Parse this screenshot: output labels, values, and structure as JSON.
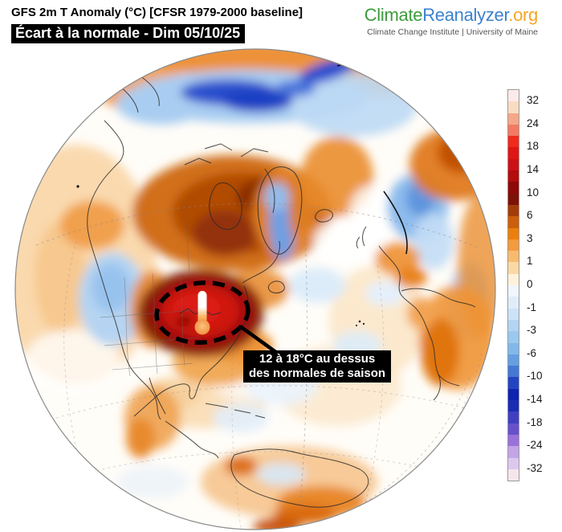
{
  "header": {
    "title": "GFS 2m T Anomaly (°C) [CFSR 1979-2000 baseline]",
    "badge": "Écart à la normale - Dim 05/10/25"
  },
  "logo": {
    "climate": "Climate",
    "reanalyzer": "Reanalyzer",
    "org": ".org",
    "tagline": "Climate Change Institute | University of Maine",
    "colors": {
      "climate": "#3d9c3d",
      "reanalyzer": "#3b82d0",
      "org": "#f5a623"
    }
  },
  "annotation": {
    "line1": "12 à 18°C au dessus",
    "line2": "des normales de saison",
    "bg": "#000000",
    "fg": "#ffffff"
  },
  "colorbar": {
    "units": "°C",
    "ticks": [
      "32",
      "24",
      "18",
      "14",
      "10",
      "6",
      "3",
      "1",
      "0",
      "-1",
      "-3",
      "-6",
      "-10",
      "-14",
      "-18",
      "-24",
      "-32"
    ],
    "segments": [
      "#fbeaea",
      "#f8dcc2",
      "#f5a78a",
      "#f27a62",
      "#ef2a1c",
      "#df1613",
      "#cc1116",
      "#b30d0d",
      "#8f0909",
      "#7d1206",
      "#a33c08",
      "#cb5f0b",
      "#eb7f0d",
      "#f49a3f",
      "#f8bb6e",
      "#fbd9a5",
      "#fef2dd",
      "#f0f6fc",
      "#dfedf9",
      "#cce2f6",
      "#b3d5f2",
      "#9bc8ee",
      "#83b8ea",
      "#659fe2",
      "#4478d4",
      "#2344c2",
      "#0e23af",
      "#1b2cb4",
      "#3f3fc1",
      "#6850cc",
      "#9a71da",
      "#c2a4e7",
      "#dcc8ee",
      "#f6e6ec"
    ]
  }
}
